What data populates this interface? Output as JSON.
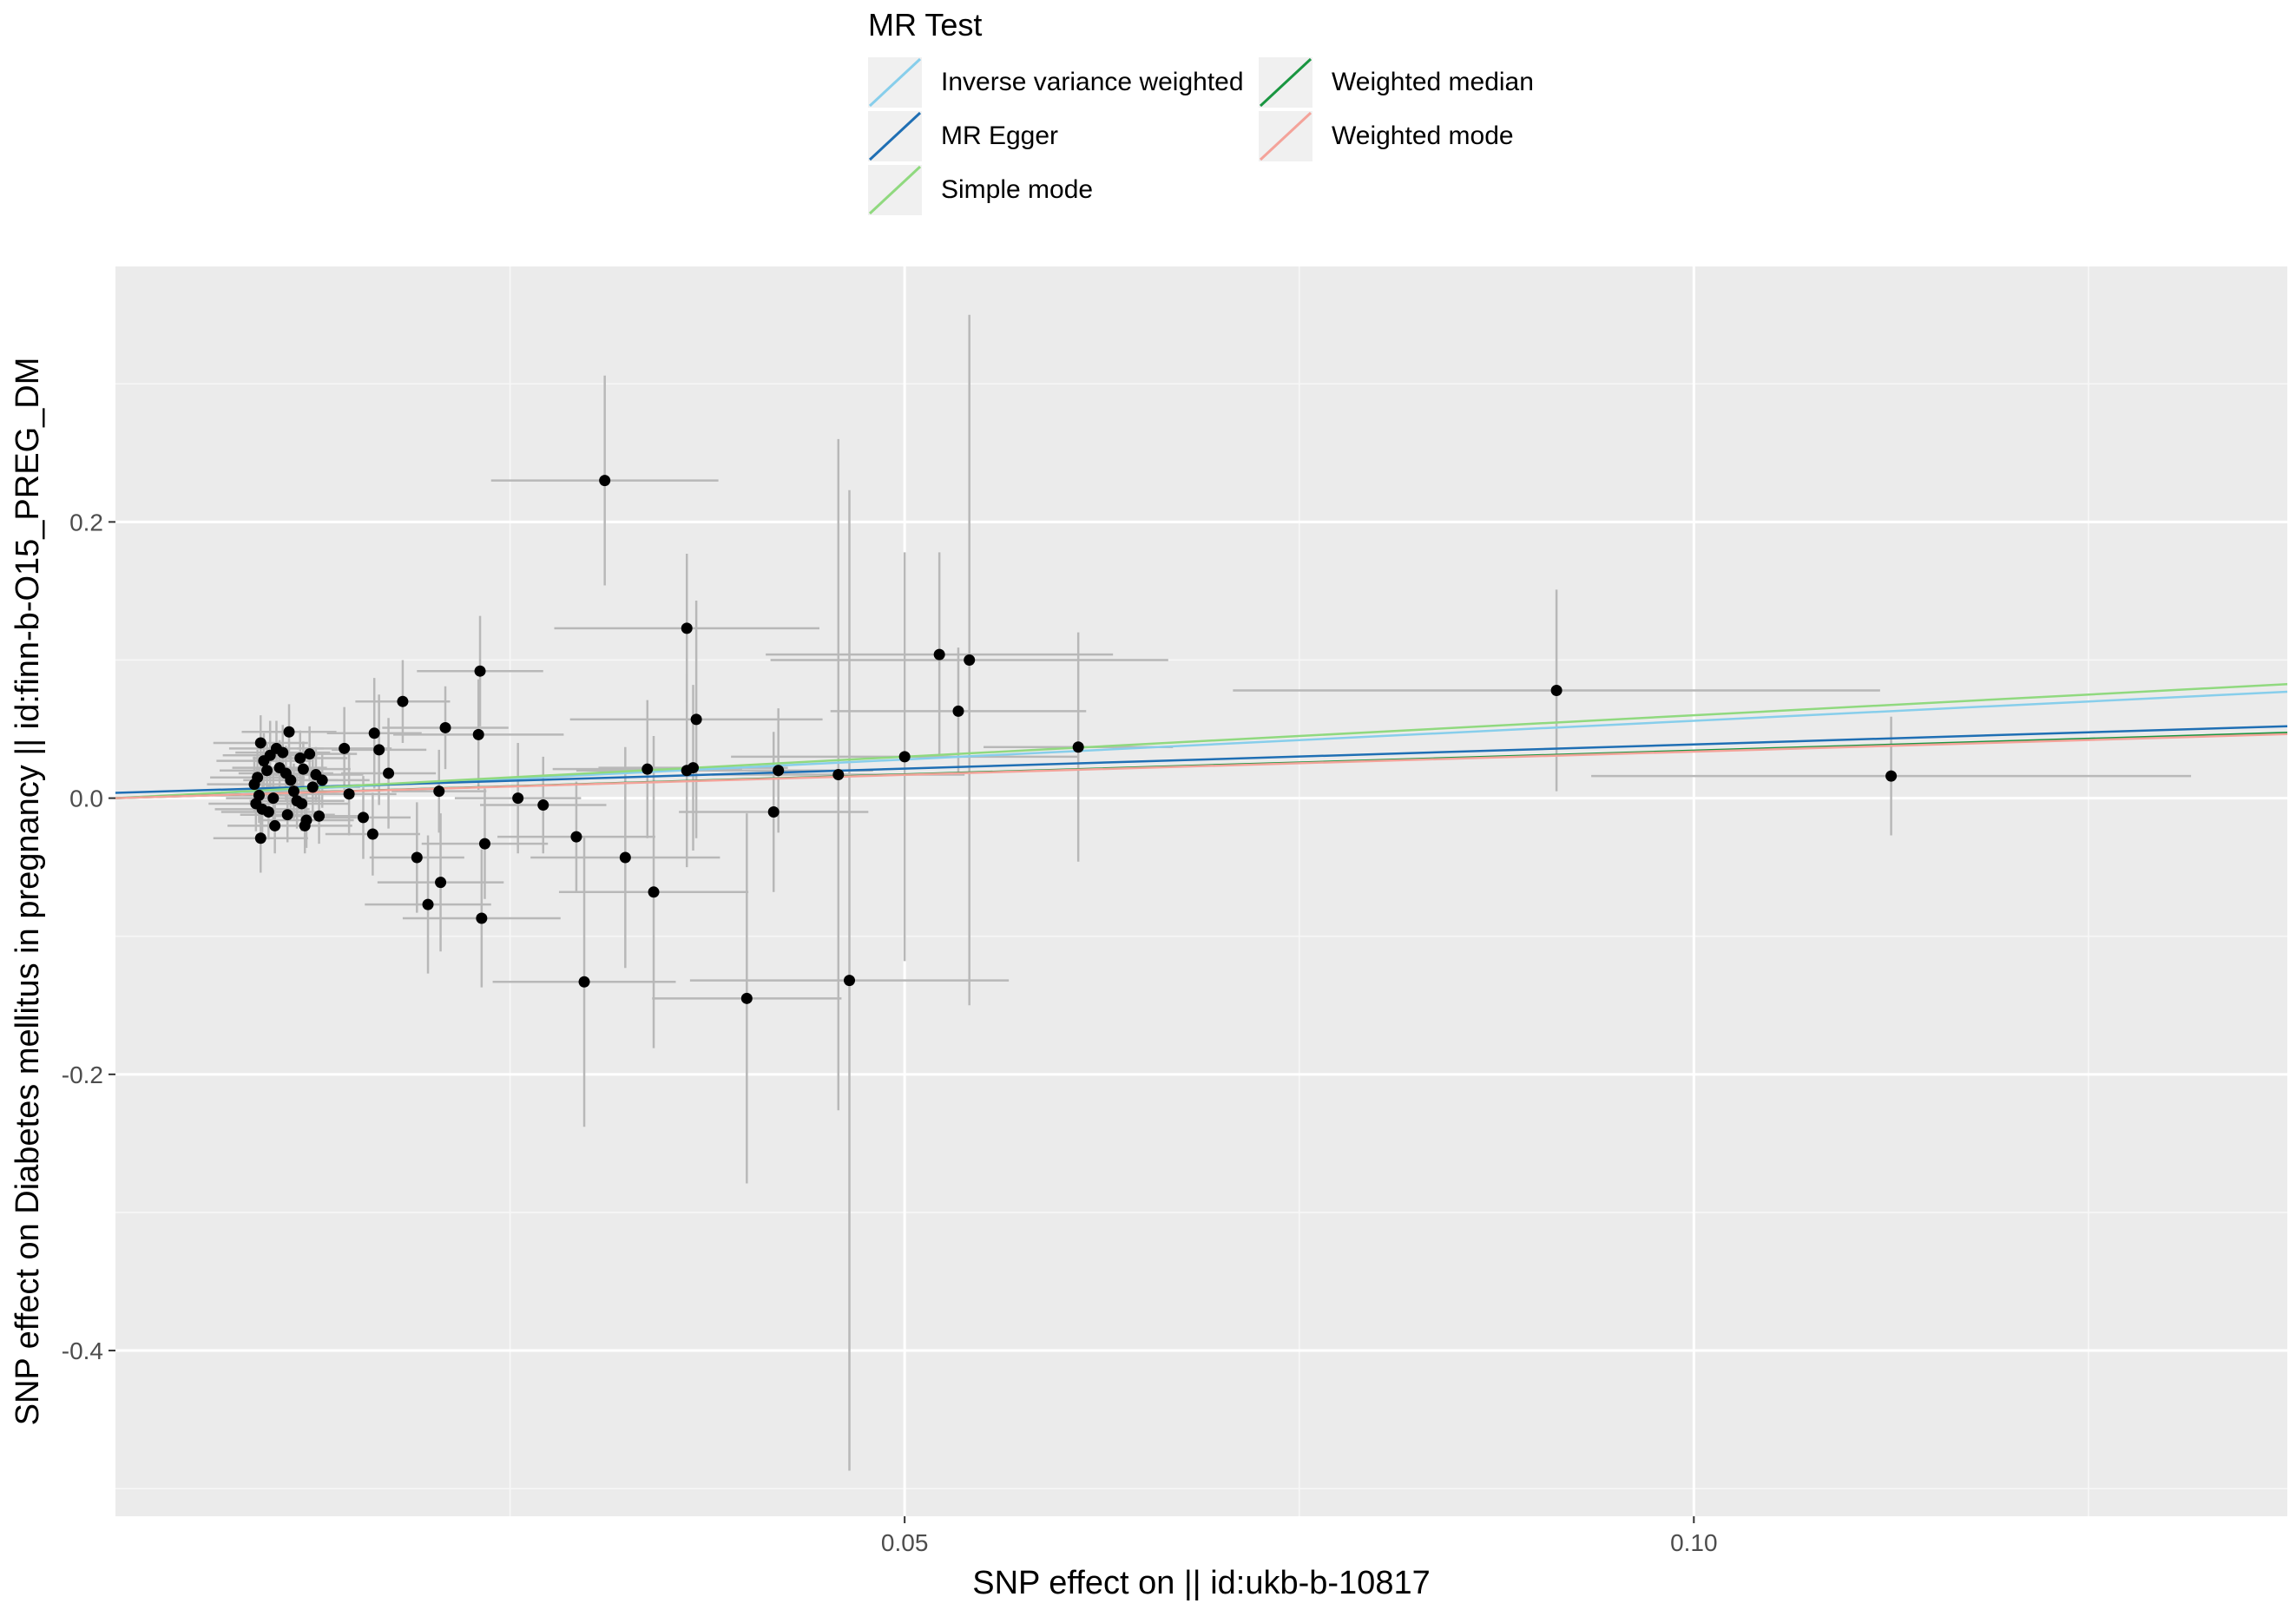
{
  "legend": {
    "title": "MR Test",
    "items": [
      {
        "label": "Inverse variance weighted",
        "color": "#87CEEB"
      },
      {
        "label": "MR Egger",
        "color": "#1F6FB4"
      },
      {
        "label": "Simple mode",
        "color": "#90D97F"
      },
      {
        "label": "Weighted median",
        "color": "#1A9641"
      },
      {
        "label": "Weighted mode",
        "color": "#F4A39A"
      }
    ]
  },
  "chart_data": {
    "type": "scatter",
    "title": "",
    "xlabel": "SNP effect on  || id:ukb-b-10817",
    "ylabel": "SNP effect on Diabetes mellitus in pregnancy || id:finn-b-O15_PREG_DM",
    "xlim": [
      0.0,
      0.1376
    ],
    "ylim": [
      -0.52,
      0.385
    ],
    "x_ticks": [
      0.05,
      0.1
    ],
    "x_tick_labels": [
      "0.05",
      "0.10"
    ],
    "y_ticks": [
      0.2,
      0.0,
      -0.2,
      -0.4
    ],
    "y_tick_labels": [
      "0.2",
      "0.0",
      "-0.2",
      "-0.4"
    ],
    "grid": true,
    "panel_background": "#EBEBEB",
    "point_color": "#000000",
    "errorbar_color": "#B8B8B8",
    "points": [
      {
        "x": 0.031,
        "y": 0.23,
        "xerr": 0.0072,
        "yerr": 0.076
      },
      {
        "x": 0.0362,
        "y": 0.123,
        "xerr": 0.0084,
        "yerr": 0.054
      },
      {
        "x": 0.0368,
        "y": 0.057,
        "xerr": 0.008,
        "yerr": 0.086
      },
      {
        "x": 0.0522,
        "y": 0.104,
        "xerr": 0.011,
        "yerr": 0.074
      },
      {
        "x": 0.0541,
        "y": 0.1,
        "xerr": 0.0126,
        "yerr": 0.25
      },
      {
        "x": 0.0534,
        "y": 0.063,
        "xerr": 0.0081,
        "yerr": 0.046
      },
      {
        "x": 0.0362,
        "y": 0.02,
        "xerr": 0.007,
        "yerr": 0.07
      },
      {
        "x": 0.0366,
        "y": 0.022,
        "xerr": 0.006,
        "yerr": 0.06
      },
      {
        "x": 0.042,
        "y": 0.02,
        "xerr": 0.006,
        "yerr": 0.045
      },
      {
        "x": 0.0458,
        "y": 0.017,
        "xerr": 0.008,
        "yerr": 0.243
      },
      {
        "x": 0.05,
        "y": 0.03,
        "xerr": 0.011,
        "yerr": 0.148
      },
      {
        "x": 0.061,
        "y": 0.037,
        "xerr": 0.006,
        "yerr": 0.083
      },
      {
        "x": 0.0913,
        "y": 0.078,
        "xerr": 0.0205,
        "yerr": 0.073
      },
      {
        "x": 0.1125,
        "y": 0.016,
        "xerr": 0.019,
        "yerr": 0.043
      },
      {
        "x": 0.0337,
        "y": 0.021,
        "xerr": 0.006,
        "yerr": 0.05
      },
      {
        "x": 0.0417,
        "y": -0.01,
        "xerr": 0.006,
        "yerr": 0.058
      },
      {
        "x": 0.04,
        "y": -0.145,
        "xerr": 0.006,
        "yerr": 0.134
      },
      {
        "x": 0.0465,
        "y": -0.132,
        "xerr": 0.0101,
        "yerr": 0.355
      },
      {
        "x": 0.0292,
        "y": -0.028,
        "xerr": 0.005,
        "yerr": 0.04
      },
      {
        "x": 0.0323,
        "y": -0.043,
        "xerr": 0.006,
        "yerr": 0.08
      },
      {
        "x": 0.0341,
        "y": -0.068,
        "xerr": 0.006,
        "yerr": 0.113
      },
      {
        "x": 0.0297,
        "y": -0.133,
        "xerr": 0.0058,
        "yerr": 0.105
      },
      {
        "x": 0.0255,
        "y": 0.0,
        "xerr": 0.004,
        "yerr": 0.04
      },
      {
        "x": 0.0271,
        "y": -0.005,
        "xerr": 0.004,
        "yerr": 0.035
      },
      {
        "x": 0.0231,
        "y": 0.092,
        "xerr": 0.004,
        "yerr": 0.04
      },
      {
        "x": 0.023,
        "y": 0.046,
        "xerr": 0.0054,
        "yerr": 0.04
      },
      {
        "x": 0.0234,
        "y": -0.033,
        "xerr": 0.004,
        "yerr": 0.04
      },
      {
        "x": 0.0232,
        "y": -0.087,
        "xerr": 0.005,
        "yerr": 0.05
      },
      {
        "x": 0.0182,
        "y": 0.07,
        "xerr": 0.003,
        "yerr": 0.03
      },
      {
        "x": 0.0209,
        "y": 0.051,
        "xerr": 0.004,
        "yerr": 0.03
      },
      {
        "x": 0.0164,
        "y": 0.047,
        "xerr": 0.003,
        "yerr": 0.04
      },
      {
        "x": 0.0167,
        "y": 0.035,
        "xerr": 0.003,
        "yerr": 0.04
      },
      {
        "x": 0.0173,
        "y": 0.018,
        "xerr": 0.003,
        "yerr": 0.04
      },
      {
        "x": 0.0145,
        "y": 0.036,
        "xerr": 0.003,
        "yerr": 0.03
      },
      {
        "x": 0.0148,
        "y": 0.003,
        "xerr": 0.003,
        "yerr": 0.03
      },
      {
        "x": 0.0157,
        "y": -0.014,
        "xerr": 0.003,
        "yerr": 0.03
      },
      {
        "x": 0.0163,
        "y": -0.026,
        "xerr": 0.003,
        "yerr": 0.03
      },
      {
        "x": 0.0191,
        "y": -0.043,
        "xerr": 0.003,
        "yerr": 0.04
      },
      {
        "x": 0.0198,
        "y": -0.077,
        "xerr": 0.004,
        "yerr": 0.05
      },
      {
        "x": 0.0206,
        "y": -0.061,
        "xerr": 0.004,
        "yerr": 0.05
      },
      {
        "x": 0.0205,
        "y": 0.005,
        "xerr": 0.003,
        "yerr": 0.03
      },
      {
        "x": 0.011,
        "y": 0.048,
        "xerr": 0.003,
        "yerr": 0.02
      },
      {
        "x": 0.0098,
        "y": 0.031,
        "xerr": 0.003,
        "yerr": 0.025
      },
      {
        "x": 0.0102,
        "y": 0.036,
        "xerr": 0.003,
        "yerr": 0.02
      },
      {
        "x": 0.0092,
        "y": 0.04,
        "xerr": 0.003,
        "yerr": 0.02
      },
      {
        "x": 0.0094,
        "y": 0.027,
        "xerr": 0.003,
        "yerr": 0.02
      },
      {
        "x": 0.009,
        "y": 0.015,
        "xerr": 0.003,
        "yerr": 0.02
      },
      {
        "x": 0.0088,
        "y": 0.01,
        "xerr": 0.003,
        "yerr": 0.02
      },
      {
        "x": 0.0091,
        "y": 0.002,
        "xerr": 0.003,
        "yerr": 0.02
      },
      {
        "x": 0.0089,
        "y": -0.004,
        "xerr": 0.003,
        "yerr": 0.02
      },
      {
        "x": 0.0093,
        "y": -0.008,
        "xerr": 0.003,
        "yerr": 0.02
      },
      {
        "x": 0.0092,
        "y": -0.029,
        "xerr": 0.003,
        "yerr": 0.025
      },
      {
        "x": 0.0097,
        "y": -0.01,
        "xerr": 0.003,
        "yerr": 0.02
      },
      {
        "x": 0.0101,
        "y": -0.02,
        "xerr": 0.003,
        "yerr": 0.02
      },
      {
        "x": 0.0104,
        "y": 0.022,
        "xerr": 0.003,
        "yerr": 0.02
      },
      {
        "x": 0.0106,
        "y": 0.033,
        "xerr": 0.003,
        "yerr": 0.02
      },
      {
        "x": 0.0108,
        "y": 0.018,
        "xerr": 0.003,
        "yerr": 0.02
      },
      {
        "x": 0.0111,
        "y": 0.013,
        "xerr": 0.003,
        "yerr": 0.02
      },
      {
        "x": 0.0113,
        "y": 0.005,
        "xerr": 0.003,
        "yerr": 0.02
      },
      {
        "x": 0.0115,
        "y": -0.002,
        "xerr": 0.003,
        "yerr": 0.02
      },
      {
        "x": 0.0109,
        "y": -0.012,
        "xerr": 0.003,
        "yerr": 0.02
      },
      {
        "x": 0.0117,
        "y": 0.029,
        "xerr": 0.003,
        "yerr": 0.02
      },
      {
        "x": 0.0119,
        "y": 0.021,
        "xerr": 0.003,
        "yerr": 0.02
      },
      {
        "x": 0.0121,
        "y": -0.016,
        "xerr": 0.003,
        "yerr": 0.02
      },
      {
        "x": 0.0123,
        "y": 0.032,
        "xerr": 0.003,
        "yerr": 0.02
      },
      {
        "x": 0.0125,
        "y": 0.008,
        "xerr": 0.003,
        "yerr": 0.02
      },
      {
        "x": 0.0127,
        "y": 0.017,
        "xerr": 0.003,
        "yerr": 0.02
      },
      {
        "x": 0.0129,
        "y": -0.013,
        "xerr": 0.003,
        "yerr": 0.02
      },
      {
        "x": 0.0131,
        "y": 0.013,
        "xerr": 0.003,
        "yerr": 0.02
      },
      {
        "x": 0.0096,
        "y": 0.02,
        "xerr": 0.003,
        "yerr": 0.02
      },
      {
        "x": 0.01,
        "y": 0.0,
        "xerr": 0.003,
        "yerr": 0.02
      },
      {
        "x": 0.0118,
        "y": -0.004,
        "xerr": 0.003,
        "yerr": 0.02
      },
      {
        "x": 0.012,
        "y": -0.02,
        "xerr": 0.003,
        "yerr": 0.02
      }
    ],
    "series": [
      {
        "name": "Inverse variance weighted",
        "intercept": 0.0,
        "slope": 0.56,
        "color": "#87CEEB"
      },
      {
        "name": "MR Egger",
        "intercept": 0.0038,
        "slope": 0.351,
        "color": "#1F6FB4"
      },
      {
        "name": "Simple mode",
        "intercept": 0.0,
        "slope": 0.6,
        "color": "#90D97F"
      },
      {
        "name": "Weighted median",
        "intercept": 0.0,
        "slope": 0.344,
        "color": "#1A9641"
      },
      {
        "name": "Weighted mode",
        "intercept": 0.0,
        "slope": 0.337,
        "color": "#F4A39A"
      }
    ]
  }
}
